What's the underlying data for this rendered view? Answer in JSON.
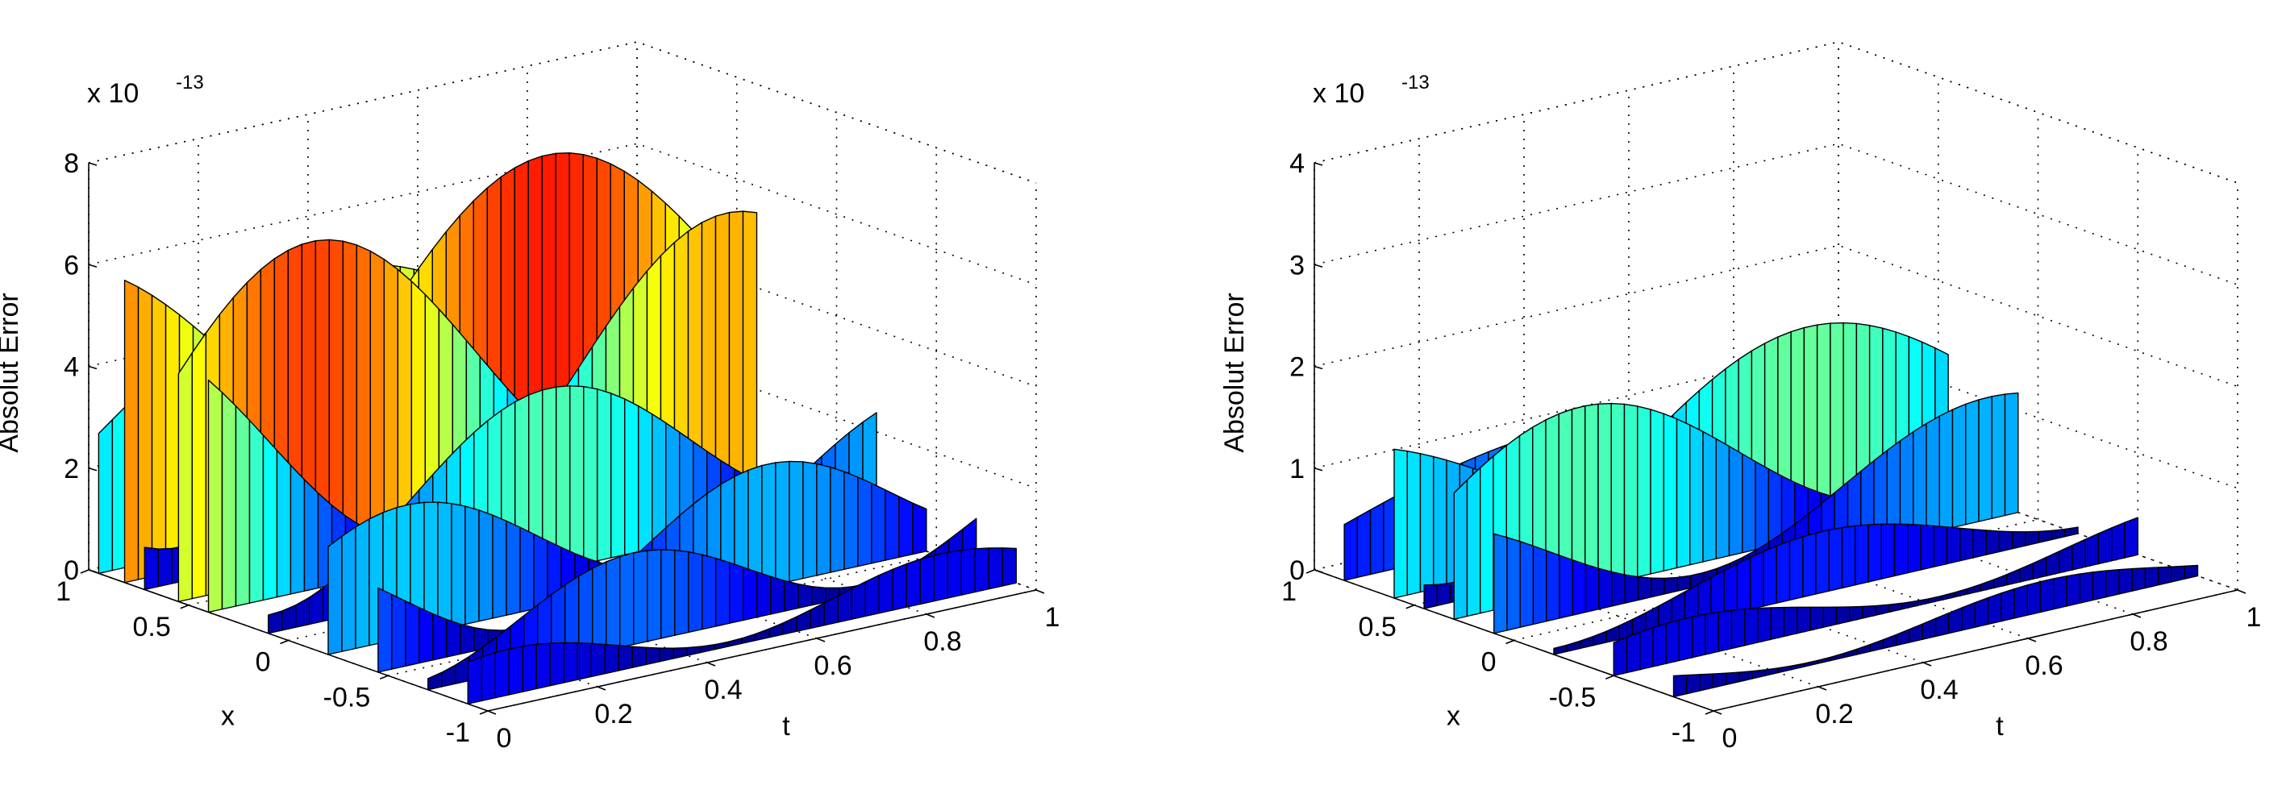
{
  "chart_data": [
    {
      "type": "surface",
      "title": "",
      "xlabel": "t",
      "ylabel": "x",
      "zlabel": "Absolut Error",
      "exponent_label": "x 10",
      "exponent_power": "-13",
      "xlim": [
        0,
        1
      ],
      "ylim": [
        -1,
        1
      ],
      "zlim": [
        0,
        8
      ],
      "t_ticks": [
        "0",
        "0.2",
        "0.4",
        "0.6",
        "0.8",
        "1"
      ],
      "x_ticks": [
        "1",
        "0.5",
        "0",
        "-0.5",
        "-1"
      ],
      "z_ticks": [
        "0",
        "2",
        "4",
        "6",
        "8"
      ],
      "colormap": "jet",
      "x_samples": [
        -1,
        -0.9,
        -0.8,
        -0.7,
        -0.6,
        -0.5,
        -0.4,
        -0.3,
        -0.2,
        -0.1,
        0,
        0.1,
        0.2,
        0.3,
        0.4,
        0.5,
        0.6,
        0.7,
        0.8,
        0.9,
        1
      ],
      "ridges": [
        {
          "x": 0.95,
          "peak": 5.0
        },
        {
          "x": 0.82,
          "peak": 6.5
        },
        {
          "x": 0.72,
          "peak": 6.8
        },
        {
          "x": 0.55,
          "peak": 6.5
        },
        {
          "x": 0.4,
          "peak": 5.6
        },
        {
          "x": 0.1,
          "peak": 3.6
        },
        {
          "x": -0.2,
          "peak": 2.6
        },
        {
          "x": -0.45,
          "peak": 2.4
        },
        {
          "x": -0.7,
          "peak": 1.8
        },
        {
          "x": -0.9,
          "peak": 0.9
        }
      ]
    },
    {
      "type": "surface",
      "title": "",
      "xlabel": "t",
      "ylabel": "x",
      "zlabel": "Absolut Error",
      "exponent_label": "x 10",
      "exponent_power": "-13",
      "xlim": [
        0,
        1
      ],
      "ylim": [
        -1,
        1
      ],
      "zlim": [
        0,
        4
      ],
      "t_ticks": [
        "0",
        "0.2",
        "0.4",
        "0.6",
        "0.8",
        "1"
      ],
      "x_ticks": [
        "1",
        "0.5",
        "0",
        "-0.5",
        "-1"
      ],
      "z_ticks": [
        "0",
        "1",
        "2",
        "3",
        "4"
      ],
      "colormap": "jet",
      "x_samples": [
        -1,
        -0.9,
        -0.8,
        -0.7,
        -0.6,
        -0.5,
        -0.4,
        -0.3,
        -0.2,
        -0.1,
        0,
        0.1,
        0.2,
        0.3,
        0.4,
        0.5,
        0.6,
        0.7,
        0.8,
        0.9,
        1
      ],
      "ridges": [
        {
          "x": 0.85,
          "peak": 1.0
        },
        {
          "x": 0.6,
          "peak": 1.6
        },
        {
          "x": 0.45,
          "peak": 1.9
        },
        {
          "x": 0.3,
          "peak": 1.8
        },
        {
          "x": 0.1,
          "peak": 1.2
        },
        {
          "x": -0.2,
          "peak": 0.6
        },
        {
          "x": -0.5,
          "peak": 0.4
        },
        {
          "x": -0.8,
          "peak": 0.3
        }
      ]
    }
  ]
}
